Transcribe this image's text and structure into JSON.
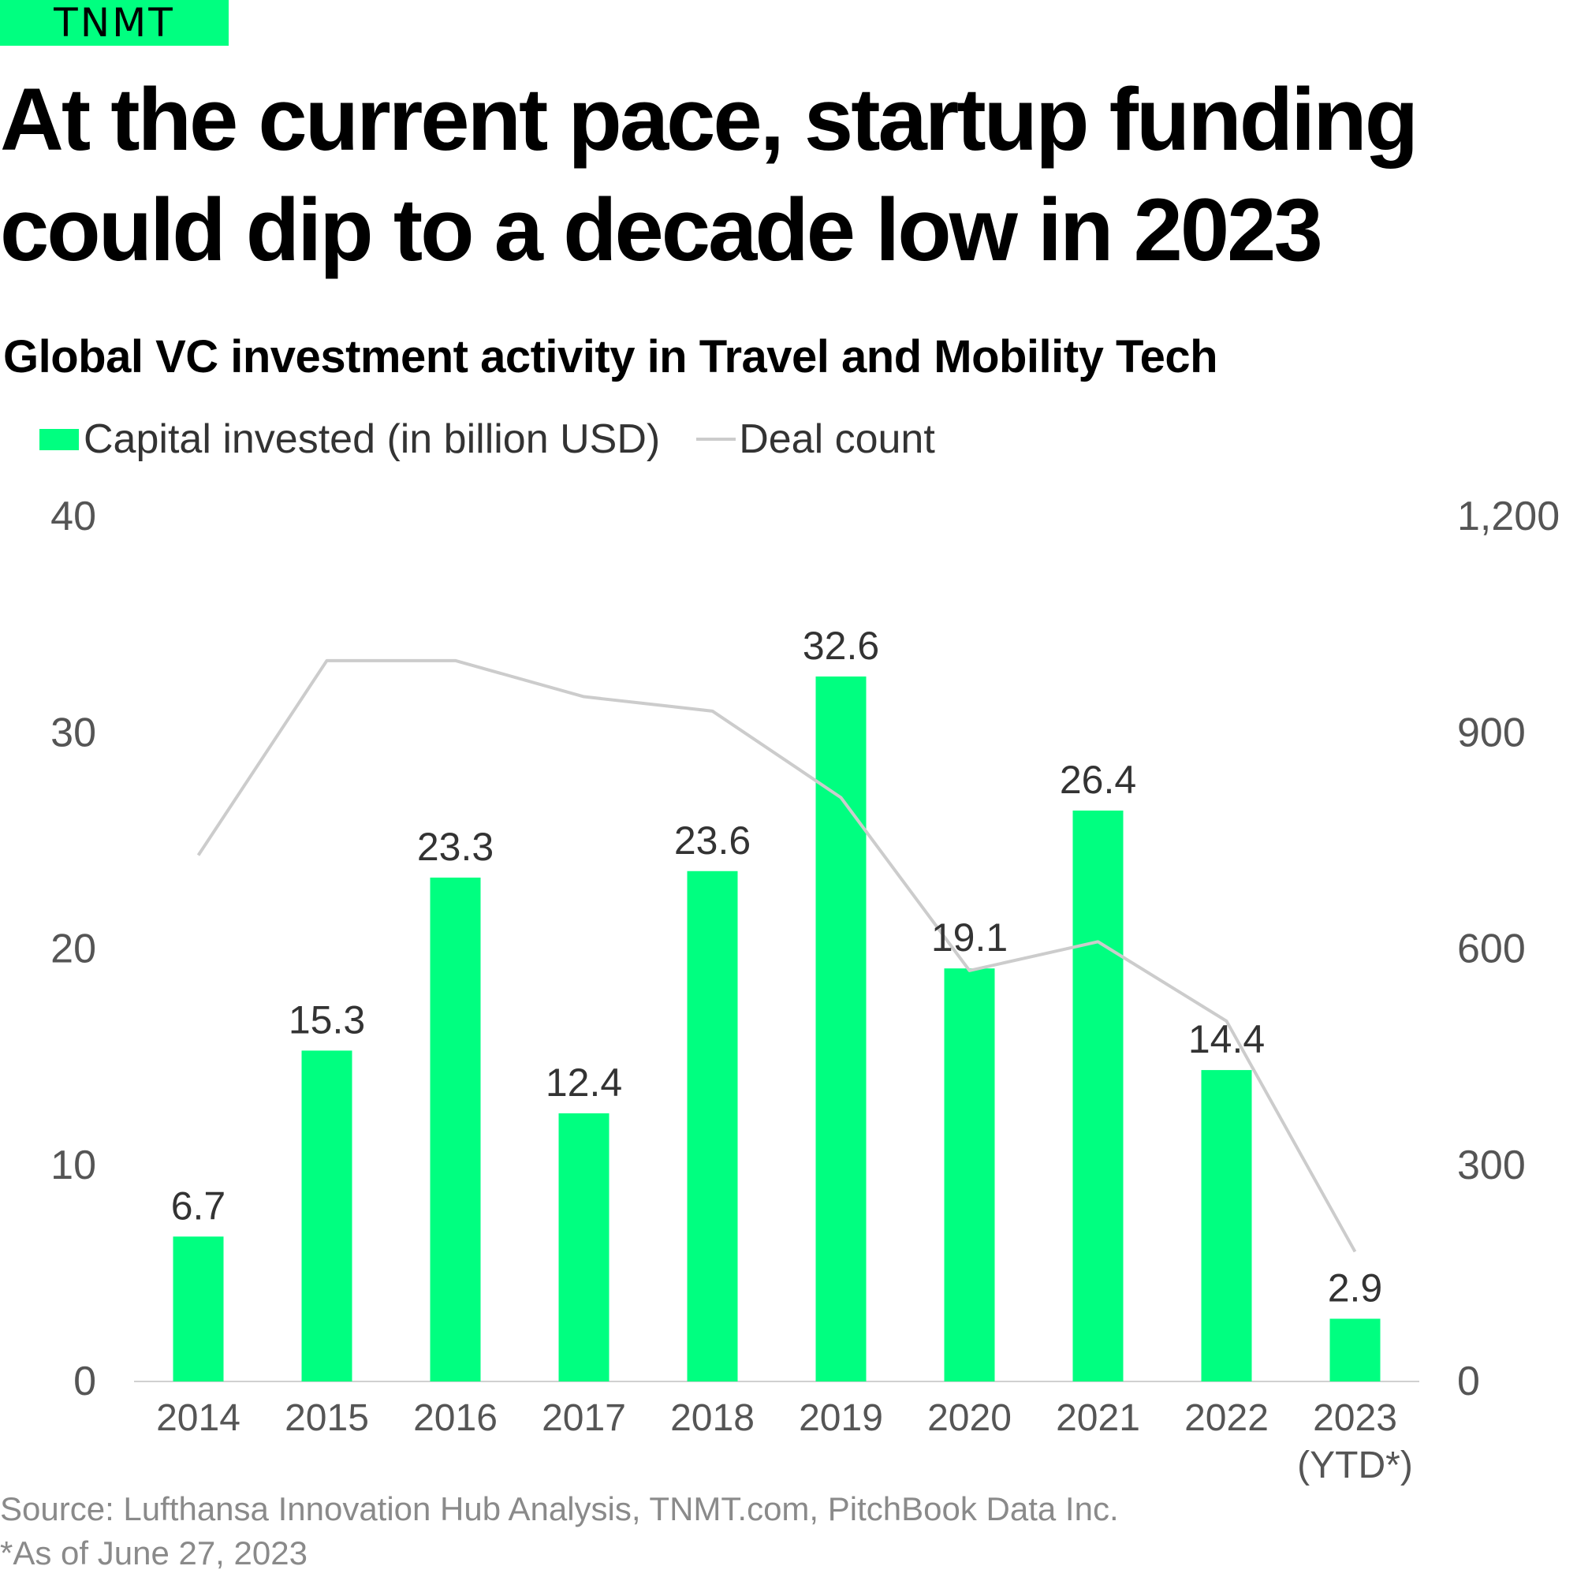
{
  "brand": {
    "logo_text": "TNMT"
  },
  "headline": "At the current pace, startup funding could dip to a decade low in 2023",
  "chart_data": {
    "type": "bar",
    "title": "Global VC investment activity in Travel and Mobility Tech",
    "categories": [
      "2014",
      "2015",
      "2016",
      "2017",
      "2018",
      "2019",
      "2020",
      "2021",
      "2022",
      "2023"
    ],
    "category_sublabels": [
      "",
      "",
      "",
      "",
      "",
      "",
      "",
      "",
      "",
      "(YTD*)"
    ],
    "series": [
      {
        "name": "Capital invested (in billion USD)",
        "type": "bar",
        "axis": "left",
        "color": "#00ff80",
        "values": [
          6.7,
          15.3,
          23.3,
          12.4,
          23.6,
          32.6,
          19.1,
          26.4,
          14.4,
          2.9
        ],
        "data_labels": [
          "6.7",
          "15.3",
          "23.3",
          "12.4",
          "23.6",
          "32.6",
          "19.1",
          "26.4",
          "14.4",
          "2.9"
        ]
      },
      {
        "name": "Deal count",
        "type": "line",
        "axis": "right",
        "color": "#cccccc",
        "values": [
          730,
          1000,
          1000,
          950,
          930,
          810,
          570,
          610,
          500,
          180
        ]
      }
    ],
    "y_left": {
      "min": 0,
      "max": 40,
      "ticks": [
        "0",
        "10",
        "20",
        "30",
        "40"
      ]
    },
    "y_right": {
      "min": 0,
      "max": 1200,
      "ticks": [
        "0",
        "300",
        "600",
        "900",
        "1,200"
      ]
    },
    "grid": false,
    "legend_position": "top-left"
  },
  "footer": {
    "source": "Source: Lufthansa Innovation Hub Analysis, TNMT.com, PitchBook Data Inc.",
    "note": "*As of June 27, 2023"
  }
}
